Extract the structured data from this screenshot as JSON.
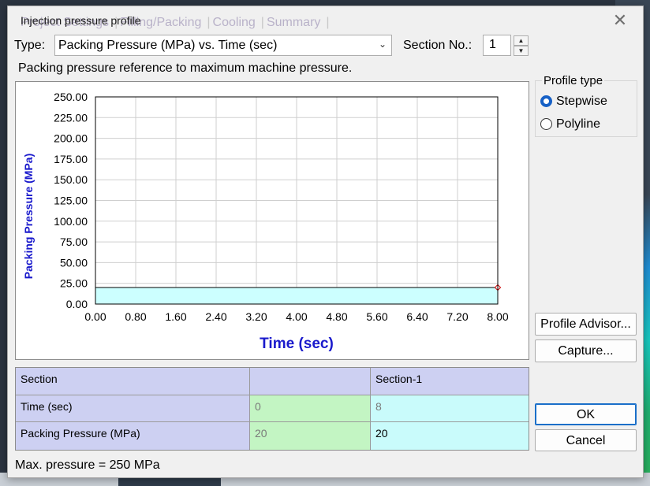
{
  "window": {
    "title": "Injection pressure profile",
    "background_tabs": [
      "Project Settings",
      "Filling/Packing",
      "Cooling",
      "Summary"
    ],
    "close_glyph": "✕"
  },
  "type": {
    "label": "Type:",
    "selected": "Packing Pressure (MPa) vs. Time (sec)"
  },
  "section": {
    "label": "Section No.:",
    "value": "1"
  },
  "note": "Packing pressure reference to maximum machine pressure.",
  "profile_type": {
    "title": "Profile type",
    "options": [
      "Stepwise",
      "Polyline"
    ],
    "selected": "Stepwise"
  },
  "buttons": {
    "profile_advisor": "Profile Advisor...",
    "capture": "Capture...",
    "ok": "OK",
    "cancel": "Cancel"
  },
  "table": {
    "headers": [
      "Section",
      "",
      "Section-1"
    ],
    "rows": [
      {
        "label": "Time (sec)",
        "values": [
          "0",
          "8"
        ]
      },
      {
        "label": "Packing Pressure (MPa)",
        "values": [
          "20",
          "20"
        ]
      }
    ]
  },
  "max_pressure": "Max. pressure = 250 MPa",
  "chart_data": {
    "type": "area",
    "xlabel": "Time (sec)",
    "ylabel": "Packing Pressure (MPa)",
    "xlim": [
      0,
      8
    ],
    "ylim": [
      0,
      250
    ],
    "x_ticks": [
      "0.00",
      "0.80",
      "1.60",
      "2.40",
      "3.20",
      "4.00",
      "4.80",
      "5.60",
      "6.40",
      "7.20",
      "8.00"
    ],
    "y_ticks": [
      "0.00",
      "25.00",
      "50.00",
      "75.00",
      "100.00",
      "125.00",
      "150.00",
      "175.00",
      "200.00",
      "225.00",
      "250.00"
    ],
    "grid": true,
    "series": [
      {
        "x": [
          0,
          8
        ],
        "y": [
          20,
          20
        ],
        "style": "stepwise",
        "fill": "#ccffff",
        "line": "#000000",
        "marker_color": "#cc0000"
      }
    ],
    "xlabel_color": "#1a1acc",
    "ylabel_color": "#1a1acc"
  }
}
